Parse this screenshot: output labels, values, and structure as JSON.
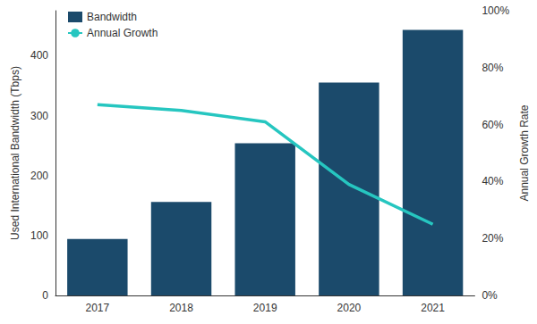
{
  "chart_data": {
    "type": "bar",
    "categories": [
      "2017",
      "2018",
      "2019",
      "2020",
      "2021"
    ],
    "ylabel": "Used International Bandwidth (Tbps)",
    "y2label": "Annual Growth Rate",
    "ylim": [
      0,
      475
    ],
    "yticks": [
      0,
      100,
      200,
      300,
      400
    ],
    "y2lim": [
      0,
      100
    ],
    "y2ticks": [
      {
        "value": 0,
        "label": "0%"
      },
      {
        "value": 20,
        "label": "20%"
      },
      {
        "value": 40,
        "label": "40%"
      },
      {
        "value": 60,
        "label": "60%"
      },
      {
        "value": 80,
        "label": "80%"
      },
      {
        "value": 100,
        "label": "100%"
      }
    ],
    "legend": "upper left",
    "grid": false,
    "series": [
      {
        "name": "Bandwidth",
        "type": "bar",
        "color": "#1b4a6b",
        "values": [
          94,
          156,
          254,
          355,
          443
        ]
      },
      {
        "name": "Annual Growth",
        "type": "line",
        "color": "#26c6c0",
        "axis": "y2",
        "values": [
          67,
          65,
          61,
          39,
          25
        ]
      }
    ]
  }
}
